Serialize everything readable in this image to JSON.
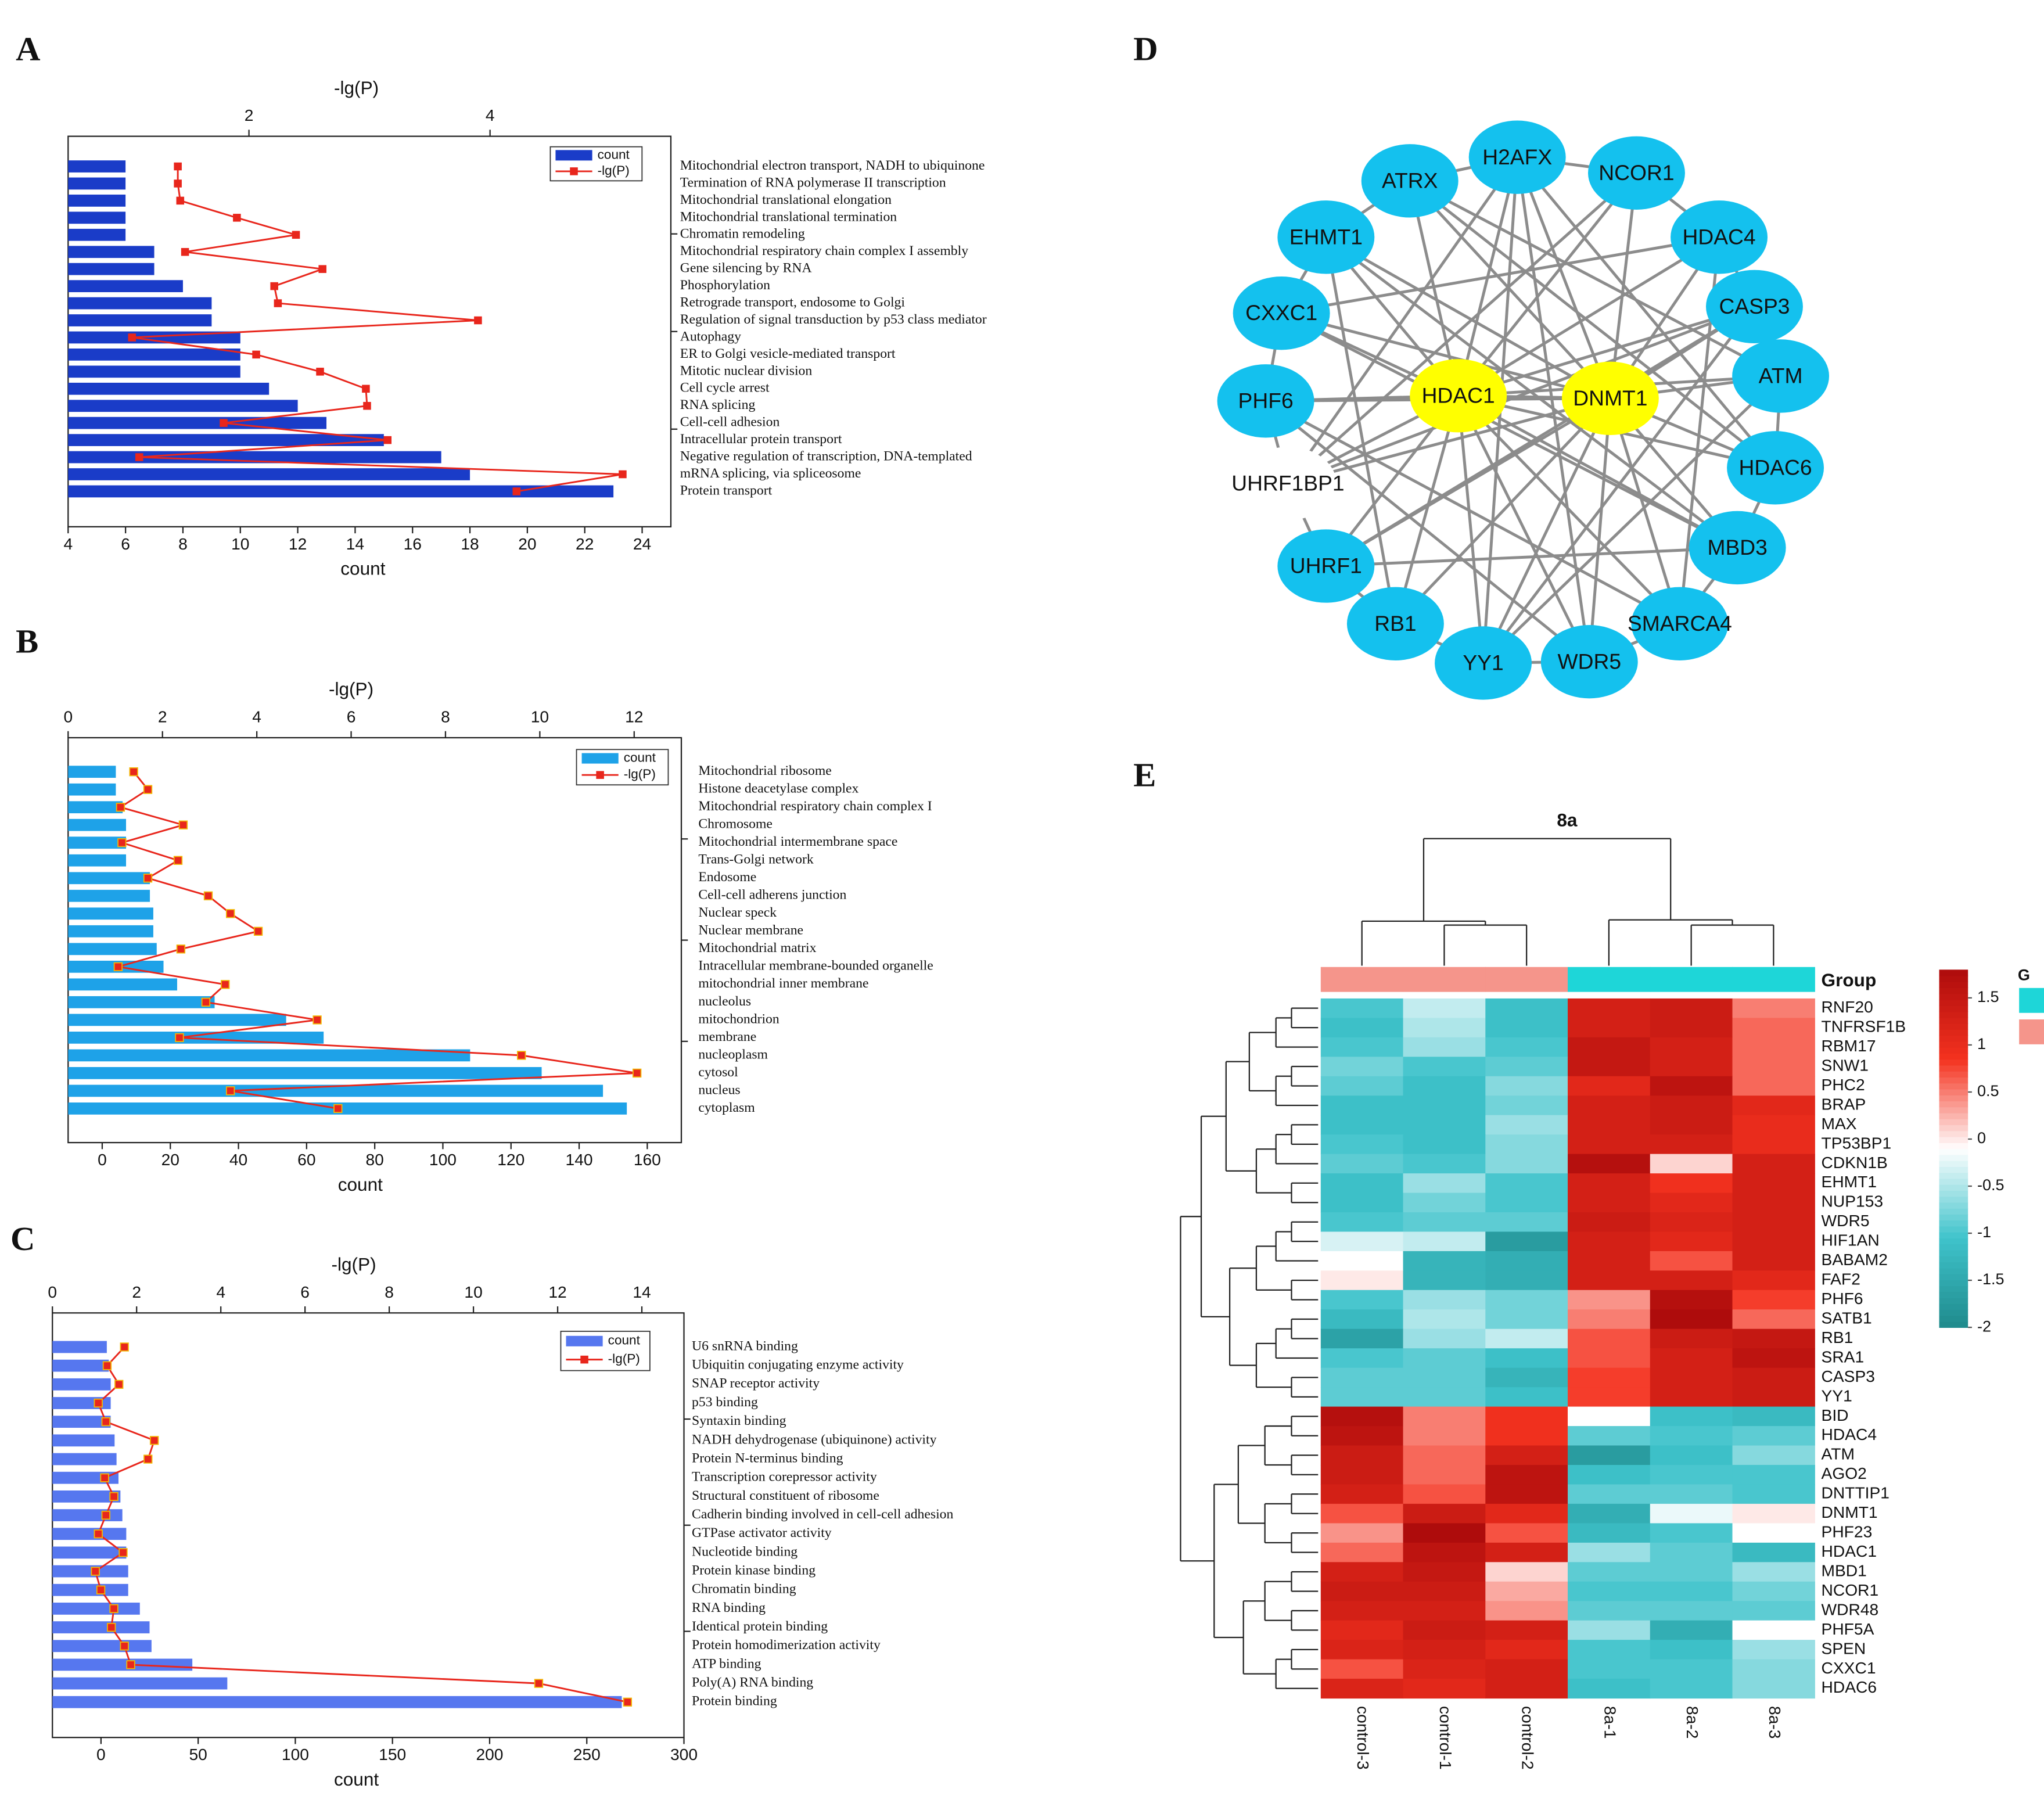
{
  "chart_data": [
    {
      "type": "bar",
      "panel": "A",
      "orientation": "horizontal",
      "xlabel": "count",
      "x2label": "-lg(P)",
      "categories": [
        "Mitochondrial electron transport, NADH to ubiquinone",
        "Termination of RNA polymerase II transcription",
        "Mitochondrial translational elongation",
        "Mitochondrial translational termination",
        "Chromatin remodeling",
        "Mitochondrial respiratory chain complex I assembly",
        "Gene silencing by RNA",
        "Phosphorylation",
        "Retrograde transport, endosome to Golgi",
        "Regulation of signal transduction by p53 class mediator",
        "Autophagy",
        "ER to Golgi vesicle-mediated transport",
        "Mitotic nuclear division",
        "Cell cycle arrest",
        "RNA splicing",
        "Cell-cell adhesion",
        "Intracellular protein transport",
        "Negative regulation of transcription, DNA-templated",
        "mRNA splicing, via spliceosome",
        "Protein transport"
      ],
      "series": [
        {
          "name": "count",
          "color": "#1a3cc8",
          "values": [
            6,
            6,
            6,
            6,
            6,
            7,
            7,
            8,
            9,
            9,
            10,
            10,
            10,
            11,
            12,
            13,
            15,
            17,
            18,
            23
          ]
        },
        {
          "name": "-lg(P)",
          "color": "#e8261c",
          "axis": "x2",
          "values": [
            1.41,
            1.41,
            1.43,
            1.9,
            2.39,
            1.47,
            2.61,
            2.21,
            2.24,
            3.9,
            1.03,
            2.06,
            2.59,
            2.97,
            2.98,
            1.79,
            3.15,
            1.09,
            5.1,
            4.22
          ]
        }
      ],
      "xlim": [
        4,
        25
      ],
      "xticks": [
        4,
        6,
        8,
        10,
        12,
        14,
        16,
        18,
        20,
        22,
        24
      ],
      "x2lim": [
        0.5,
        5.5
      ],
      "x2ticks": [
        2,
        4
      ],
      "legend": "upper right"
    },
    {
      "type": "bar",
      "panel": "B",
      "orientation": "horizontal",
      "xlabel": "count",
      "x2label": "-lg(P)",
      "categories": [
        "Mitochondrial ribosome",
        "Histone deacetylase complex",
        "Mitochondrial respiratory chain complex I",
        "Chromosome",
        "Mitochondrial intermembrane space",
        "Trans-Golgi network",
        "Endosome",
        "Cell-cell adherens junction",
        "Nuclear speck",
        "Nuclear membrane",
        "Mitochondrial matrix",
        "Intracellular membrane-bounded organelle",
        "mitochondrial inner membrane",
        "nucleolus",
        "mitochondrion",
        "membrane",
        "nucleoplasm",
        "cytosol",
        "nucleus",
        "cytoplasm"
      ],
      "series": [
        {
          "name": "count",
          "color": "#1ea2e8",
          "values": [
            4,
            4,
            6,
            7,
            7,
            7,
            14,
            14,
            15,
            15,
            16,
            18,
            22,
            33,
            54,
            65,
            108,
            129,
            147,
            154
          ]
        },
        {
          "name": "-lg(P)",
          "color": "#e8261c",
          "axis": "x2",
          "values": [
            1.39,
            1.69,
            1.11,
            2.44,
            1.14,
            2.33,
            1.69,
            2.97,
            3.44,
            4.03,
            2.39,
            1.06,
            3.33,
            2.92,
            5.28,
            2.36,
            9.61,
            12.06,
            3.44,
            5.72
          ]
        }
      ],
      "xlim": [
        -10,
        170
      ],
      "xticks": [
        0,
        20,
        40,
        60,
        80,
        100,
        120,
        140,
        160
      ],
      "x2lim": [
        0,
        13
      ],
      "x2ticks": [
        0,
        2,
        4,
        6,
        8,
        10,
        12
      ],
      "legend": "upper right"
    },
    {
      "type": "bar",
      "panel": "C",
      "orientation": "horizontal",
      "xlabel": "count",
      "x2label": "-lg(P)",
      "categories": [
        "U6 snRNA binding",
        "Ubiquitin conjugating enzyme activity",
        "SNAP receptor activity",
        "p53 binding",
        "Syntaxin binding",
        "NADH dehydrogenase (ubiquinone) activity",
        "Protein N-terminus binding",
        "Transcription corepressor activity",
        "Structural constituent of ribosome",
        "Cadherin binding involved in cell-cell adhesion",
        "GTPase activator activity",
        "Nucleotide binding",
        "Protein kinase binding",
        "Chromatin binding",
        "RNA binding",
        "Identical protein binding",
        "Protein homodimerization activity",
        "ATP binding",
        "Poly(A) RNA binding",
        "Protein binding"
      ],
      "series": [
        {
          "name": "count",
          "color": "#5677ef",
          "values": [
            3,
            4,
            5,
            5,
            5,
            7,
            8,
            9,
            10,
            11,
            13,
            13,
            14,
            14,
            20,
            25,
            26,
            47,
            65,
            268
          ]
        },
        {
          "name": "-lg(P)",
          "color": "#e8261c",
          "axis": "x2",
          "values": [
            1.71,
            1.3,
            1.58,
            1.09,
            1.27,
            2.42,
            2.27,
            1.24,
            1.46,
            1.27,
            1.09,
            1.68,
            1.02,
            1.15,
            1.46,
            1.4,
            1.71,
            1.86,
            11.55,
            13.66
          ]
        }
      ],
      "xlim": [
        -25,
        300
      ],
      "xticks": [
        0,
        50,
        100,
        150,
        200,
        250,
        300
      ],
      "x2lim": [
        0,
        15
      ],
      "x2ticks": [
        0,
        2,
        4,
        6,
        8,
        10,
        12,
        14
      ],
      "legend": "upper right"
    },
    {
      "type": "network",
      "panel": "D",
      "nodes": [
        {
          "label": "H2AFX",
          "color": "#14c1ee"
        },
        {
          "label": "NCOR1",
          "color": "#14c1ee"
        },
        {
          "label": "HDAC4",
          "color": "#14c1ee"
        },
        {
          "label": "CASP3",
          "color": "#14c1ee"
        },
        {
          "label": "ATM",
          "color": "#14c1ee"
        },
        {
          "label": "HDAC6",
          "color": "#14c1ee"
        },
        {
          "label": "MBD3",
          "color": "#14c1ee"
        },
        {
          "label": "SMARCA4",
          "color": "#14c1ee"
        },
        {
          "label": "WDR5",
          "color": "#14c1ee"
        },
        {
          "label": "YY1",
          "color": "#14c1ee"
        },
        {
          "label": "RB1",
          "color": "#14c1ee"
        },
        {
          "label": "UHRF1",
          "color": "#14c1ee"
        },
        {
          "label": "UHRF1BP1",
          "color": "#ffffff"
        },
        {
          "label": "PHF6",
          "color": "#14c1ee"
        },
        {
          "label": "CXXC1",
          "color": "#14c1ee"
        },
        {
          "label": "EHMT1",
          "color": "#14c1ee"
        },
        {
          "label": "ATRX",
          "color": "#14c1ee"
        },
        {
          "label": "HDAC1",
          "color": "#ffff00"
        },
        {
          "label": "DNMT1",
          "color": "#ffff00"
        }
      ]
    },
    {
      "type": "heatmap",
      "panel": "E",
      "title": "8a",
      "group_label": "Group",
      "legend_title": "G",
      "columns": [
        "control-3",
        "control-1",
        "control-2",
        "8a-1",
        "8a-2",
        "8a-3"
      ],
      "group_colors": [
        "#f5958b",
        "#f5958b",
        "#f5958b",
        "#1ed6d8",
        "#1ed6d8",
        "#1ed6d8"
      ],
      "rows": [
        "RNF20",
        "TNFRSF1B",
        "RBM17",
        "SNW1",
        "PHC2",
        "BRAP",
        "MAX",
        "TP53BP1",
        "CDKN1B",
        "EHMT1",
        "NUP153",
        "WDR5",
        "HIF1AN",
        "BABAM2",
        "FAF2",
        "PHF6",
        "SATB1",
        "RB1",
        "SRA1",
        "CASP3",
        "YY1",
        "BID",
        "HDAC4",
        "ATM",
        "AGO2",
        "DNTTIP1",
        "DNMT1",
        "PHF23",
        "HDAC1",
        "MBD1",
        "NCOR1",
        "WDR48",
        "PHF5A",
        "SPEN",
        "CXXC1",
        "HDAC6"
      ],
      "values": [
        [
          -1,
          -0.4,
          -1.1,
          1.3,
          1.4,
          0.5
        ],
        [
          -1.1,
          -0.5,
          -1.1,
          1.3,
          1.4,
          0.6
        ],
        [
          -1,
          -0.6,
          -1,
          1.5,
          1.3,
          0.6
        ],
        [
          -0.8,
          -1,
          -0.9,
          1.5,
          1.3,
          0.6
        ],
        [
          -0.9,
          -1.1,
          -0.7,
          1.1,
          1.6,
          0.6
        ],
        [
          -1.1,
          -1.1,
          -0.8,
          1.3,
          1.4,
          1.1
        ],
        [
          -1.1,
          -1.1,
          -0.6,
          1.3,
          1.4,
          1
        ],
        [
          -1,
          -1.1,
          -0.7,
          1.3,
          1.3,
          1
        ],
        [
          -0.9,
          -1,
          -0.7,
          1.7,
          0.1,
          1.3
        ],
        [
          -1.1,
          -0.6,
          -1,
          1.3,
          0.9,
          1.3
        ],
        [
          -1.1,
          -0.8,
          -1,
          1.3,
          1.1,
          1.3
        ],
        [
          -1,
          -0.9,
          -0.9,
          1.4,
          1.2,
          1.3
        ],
        [
          -0.3,
          -0.4,
          -1.7,
          1.3,
          1.1,
          1.3
        ],
        [
          -0.1,
          -1.3,
          -1.4,
          1.3,
          0.7,
          1.3
        ],
        [
          0,
          -1.3,
          -1.4,
          1.3,
          1.3,
          1.1
        ],
        [
          -1,
          -0.6,
          -0.8,
          0.4,
          1.7,
          0.8
        ],
        [
          -1.2,
          -0.5,
          -0.8,
          0.5,
          1.8,
          0.6
        ],
        [
          -1.6,
          -0.6,
          -0.4,
          0.7,
          1.4,
          1.5
        ],
        [
          -1,
          -0.9,
          -1.1,
          0.7,
          1.3,
          1.6
        ],
        [
          -0.9,
          -0.9,
          -1.3,
          0.8,
          1.3,
          1.4
        ],
        [
          -0.9,
          -0.9,
          -1.1,
          0.8,
          1.3,
          1.4
        ],
        [
          1.7,
          0.5,
          0.9,
          -0.1,
          -1.1,
          -1.2
        ],
        [
          1.6,
          0.5,
          0.9,
          -0.9,
          -1,
          -0.9
        ],
        [
          1.4,
          0.6,
          1.3,
          -1.7,
          -1.1,
          -0.7
        ],
        [
          1.4,
          0.6,
          1.6,
          -1.1,
          -1,
          -1
        ],
        [
          1.3,
          0.7,
          1.6,
          -0.9,
          -0.9,
          -1
        ],
        [
          0.7,
          1.4,
          1.1,
          -1.4,
          -0.2,
          0
        ],
        [
          0.4,
          1.8,
          0.7,
          -1.2,
          -1,
          -0.1
        ],
        [
          0.6,
          1.6,
          1.3,
          -0.6,
          -0.9,
          -1.2
        ],
        [
          1.3,
          1.5,
          0.1,
          -0.9,
          -0.9,
          -0.6
        ],
        [
          1.4,
          1.4,
          0.3,
          -1,
          -1,
          -0.8
        ],
        [
          1.3,
          1.3,
          0.4,
          -0.9,
          -0.9,
          -0.9
        ],
        [
          1.1,
          1.4,
          1.3,
          -0.6,
          -1.4,
          -0.1
        ],
        [
          1.2,
          1.3,
          1.1,
          -1,
          -1.1,
          -0.6
        ],
        [
          0.7,
          1.2,
          1.3,
          -1,
          -1,
          -0.7
        ],
        [
          1.2,
          1.1,
          1.3,
          -1.1,
          -1,
          -0.7
        ]
      ],
      "clim": [
        -2,
        1.8
      ],
      "cticks": [
        1.5,
        1,
        0.5,
        0,
        -0.5,
        -1,
        -1.5,
        -2
      ],
      "colorscale": [
        "#1f8a8c",
        "#3fc3cb",
        "#ffffff",
        "#f4321f",
        "#ae0c0c"
      ]
    }
  ]
}
